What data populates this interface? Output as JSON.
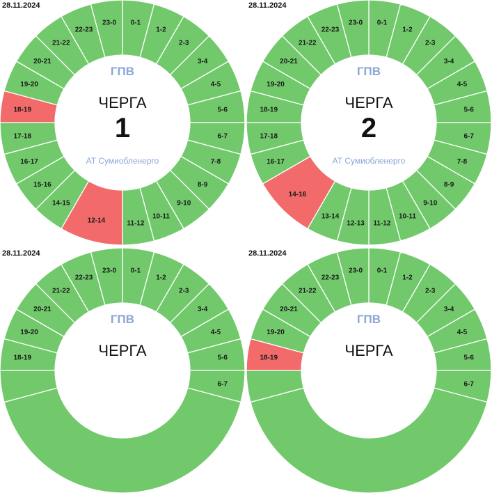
{
  "colors": {
    "on": "#72c96c",
    "off": "#f26a6a",
    "stroke": "#ffffff",
    "center": "#ffffff"
  },
  "panels": [
    {
      "date": "28.11.2024",
      "gpv": "ГПВ",
      "cherga_label": "ЧЕРГА",
      "number": "1",
      "organization": "АТ Сумиобленерго",
      "segments": [
        {
          "label": "0-1",
          "start": 0,
          "end": 1,
          "status": "on"
        },
        {
          "label": "1-2",
          "start": 1,
          "end": 2,
          "status": "on"
        },
        {
          "label": "2-3",
          "start": 2,
          "end": 3,
          "status": "on"
        },
        {
          "label": "3-4",
          "start": 3,
          "end": 4,
          "status": "on"
        },
        {
          "label": "4-5",
          "start": 4,
          "end": 5,
          "status": "on"
        },
        {
          "label": "5-6",
          "start": 5,
          "end": 6,
          "status": "on"
        },
        {
          "label": "6-7",
          "start": 6,
          "end": 7,
          "status": "on"
        },
        {
          "label": "7-8",
          "start": 7,
          "end": 8,
          "status": "on"
        },
        {
          "label": "8-9",
          "start": 8,
          "end": 9,
          "status": "on"
        },
        {
          "label": "9-10",
          "start": 9,
          "end": 10,
          "status": "on"
        },
        {
          "label": "10-11",
          "start": 10,
          "end": 11,
          "status": "on"
        },
        {
          "label": "11-12",
          "start": 11,
          "end": 12,
          "status": "on"
        },
        {
          "label": "12-14",
          "start": 12,
          "end": 14,
          "status": "off"
        },
        {
          "label": "14-15",
          "start": 14,
          "end": 15,
          "status": "on"
        },
        {
          "label": "15-16",
          "start": 15,
          "end": 16,
          "status": "on"
        },
        {
          "label": "16-17",
          "start": 16,
          "end": 17,
          "status": "on"
        },
        {
          "label": "17-18",
          "start": 17,
          "end": 18,
          "status": "on"
        },
        {
          "label": "18-19",
          "start": 18,
          "end": 19,
          "status": "off"
        },
        {
          "label": "19-20",
          "start": 19,
          "end": 20,
          "status": "on"
        },
        {
          "label": "20-21",
          "start": 20,
          "end": 21,
          "status": "on"
        },
        {
          "label": "21-22",
          "start": 21,
          "end": 22,
          "status": "on"
        },
        {
          "label": "22-23",
          "start": 22,
          "end": 23,
          "status": "on"
        },
        {
          "label": "23-0",
          "start": 23,
          "end": 24,
          "status": "on"
        }
      ]
    },
    {
      "date": "28.11.2024",
      "gpv": "ГПВ",
      "cherga_label": "ЧЕРГА",
      "number": "2",
      "organization": "АТ Сумиобленерго",
      "segments": [
        {
          "label": "0-1",
          "start": 0,
          "end": 1,
          "status": "on"
        },
        {
          "label": "1-2",
          "start": 1,
          "end": 2,
          "status": "on"
        },
        {
          "label": "2-3",
          "start": 2,
          "end": 3,
          "status": "on"
        },
        {
          "label": "3-4",
          "start": 3,
          "end": 4,
          "status": "on"
        },
        {
          "label": "4-5",
          "start": 4,
          "end": 5,
          "status": "on"
        },
        {
          "label": "5-6",
          "start": 5,
          "end": 6,
          "status": "on"
        },
        {
          "label": "6-7",
          "start": 6,
          "end": 7,
          "status": "on"
        },
        {
          "label": "7-8",
          "start": 7,
          "end": 8,
          "status": "on"
        },
        {
          "label": "8-9",
          "start": 8,
          "end": 9,
          "status": "on"
        },
        {
          "label": "9-10",
          "start": 9,
          "end": 10,
          "status": "on"
        },
        {
          "label": "10-11",
          "start": 10,
          "end": 11,
          "status": "on"
        },
        {
          "label": "11-12",
          "start": 11,
          "end": 12,
          "status": "on"
        },
        {
          "label": "12-13",
          "start": 12,
          "end": 13,
          "status": "on"
        },
        {
          "label": "13-14",
          "start": 13,
          "end": 14,
          "status": "on"
        },
        {
          "label": "14-16",
          "start": 14,
          "end": 16,
          "status": "off"
        },
        {
          "label": "16-17",
          "start": 16,
          "end": 17,
          "status": "on"
        },
        {
          "label": "17-18",
          "start": 17,
          "end": 18,
          "status": "on"
        },
        {
          "label": "18-19",
          "start": 18,
          "end": 19,
          "status": "on"
        },
        {
          "label": "19-20",
          "start": 19,
          "end": 20,
          "status": "on"
        },
        {
          "label": "20-21",
          "start": 20,
          "end": 21,
          "status": "on"
        },
        {
          "label": "21-22",
          "start": 21,
          "end": 22,
          "status": "on"
        },
        {
          "label": "22-23",
          "start": 22,
          "end": 23,
          "status": "on"
        },
        {
          "label": "23-0",
          "start": 23,
          "end": 24,
          "status": "on"
        }
      ]
    },
    {
      "date": "28.11.2024",
      "gpv": "ГПВ",
      "cherga_label": "ЧЕРГА",
      "number": "",
      "organization": "",
      "segments": [
        {
          "label": "0-1",
          "start": 0,
          "end": 1,
          "status": "on"
        },
        {
          "label": "1-2",
          "start": 1,
          "end": 2,
          "status": "on"
        },
        {
          "label": "2-3",
          "start": 2,
          "end": 3,
          "status": "on"
        },
        {
          "label": "3-4",
          "start": 3,
          "end": 4,
          "status": "on"
        },
        {
          "label": "4-5",
          "start": 4,
          "end": 5,
          "status": "on"
        },
        {
          "label": "5-6",
          "start": 5,
          "end": 6,
          "status": "on"
        },
        {
          "label": "6-7",
          "start": 6,
          "end": 7,
          "status": "on"
        },
        {
          "label": "",
          "start": 7,
          "end": 17,
          "status": "on"
        },
        {
          "label": "",
          "start": 17,
          "end": 18,
          "status": "on"
        },
        {
          "label": "18-19",
          "start": 18,
          "end": 19,
          "status": "on"
        },
        {
          "label": "19-20",
          "start": 19,
          "end": 20,
          "status": "on"
        },
        {
          "label": "20-21",
          "start": 20,
          "end": 21,
          "status": "on"
        },
        {
          "label": "21-22",
          "start": 21,
          "end": 22,
          "status": "on"
        },
        {
          "label": "22-23",
          "start": 22,
          "end": 23,
          "status": "on"
        },
        {
          "label": "23-0",
          "start": 23,
          "end": 24,
          "status": "on"
        }
      ]
    },
    {
      "date": "28.11.2024",
      "gpv": "ГПВ",
      "cherga_label": "ЧЕРГА",
      "number": "",
      "organization": "",
      "segments": [
        {
          "label": "0-1",
          "start": 0,
          "end": 1,
          "status": "on"
        },
        {
          "label": "1-2",
          "start": 1,
          "end": 2,
          "status": "on"
        },
        {
          "label": "2-3",
          "start": 2,
          "end": 3,
          "status": "on"
        },
        {
          "label": "3-4",
          "start": 3,
          "end": 4,
          "status": "on"
        },
        {
          "label": "4-5",
          "start": 4,
          "end": 5,
          "status": "on"
        },
        {
          "label": "5-6",
          "start": 5,
          "end": 6,
          "status": "on"
        },
        {
          "label": "6-7",
          "start": 6,
          "end": 7,
          "status": "on"
        },
        {
          "label": "",
          "start": 7,
          "end": 17,
          "status": "on"
        },
        {
          "label": "",
          "start": 17,
          "end": 18,
          "status": "on"
        },
        {
          "label": "18-19",
          "start": 18,
          "end": 19,
          "status": "off"
        },
        {
          "label": "19-20",
          "start": 19,
          "end": 20,
          "status": "on"
        },
        {
          "label": "20-21",
          "start": 20,
          "end": 21,
          "status": "on"
        },
        {
          "label": "21-22",
          "start": 21,
          "end": 22,
          "status": "on"
        },
        {
          "label": "22-23",
          "start": 22,
          "end": 23,
          "status": "on"
        },
        {
          "label": "23-0",
          "start": 23,
          "end": 24,
          "status": "on"
        }
      ]
    }
  ]
}
